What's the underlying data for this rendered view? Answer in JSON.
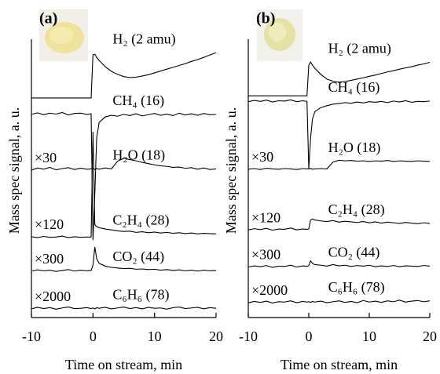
{
  "chart_data": [
    {
      "type": "line",
      "panel_label": "(a)",
      "xlabel": "Time on stream, min",
      "ylabel": "Mass spec signal, a. u.",
      "xlim": [
        -10,
        20
      ],
      "xticks": [
        -10,
        0,
        10,
        20
      ],
      "ylim": [
        0,
        100
      ],
      "line_color": "#000000",
      "x": [
        -10,
        -9,
        -8,
        -7,
        -6,
        -5,
        -4,
        -3,
        -2,
        -1,
        -0.3,
        0,
        0.3,
        0.6,
        1,
        2,
        3,
        4,
        5,
        6,
        7,
        8,
        9,
        10,
        11,
        12,
        13,
        14,
        15,
        16,
        17,
        18,
        19,
        20
      ],
      "series": [
        {
          "name": "H₂ (2 amu)",
          "values": [
            70.9,
            70.9,
            70.9,
            70.9,
            70.9,
            70.9,
            70.9,
            70.9,
            70.9,
            70.9,
            70.9,
            84.8,
            85,
            84,
            83,
            81,
            79.5,
            78.5,
            77.8,
            77.5,
            77.6,
            78,
            78.4,
            79,
            79.6,
            80.2,
            80.8,
            81.4,
            82,
            82.7,
            83.3,
            84,
            84.8,
            85.5
          ]
        },
        {
          "name": "CH₄ (16)",
          "values": [
            65.6,
            66.1,
            65.5,
            66.0,
            65.7,
            66.2,
            65.4,
            65.9,
            66.0,
            65.6,
            65.8,
            25,
            40,
            58,
            63,
            64.8,
            65.3,
            65.0,
            65.6,
            65.2,
            65.8,
            65.1,
            65.5,
            65.9,
            65.3,
            65.7,
            65.2,
            66.0,
            65.4,
            65.8,
            65.3,
            65.9,
            65.5,
            65.6
          ]
        },
        {
          "name": "H₂O (18)",
          "multiplier": "×30",
          "values": [
            47.6,
            48.3,
            47.9,
            48.5,
            47.7,
            48.1,
            48.4,
            47.8,
            48.2,
            47.9,
            48.0,
            48.2,
            47.8,
            48.1,
            47.9,
            48.3,
            48.0,
            50.5,
            51.4,
            51.0,
            50.6,
            50.1,
            49.7,
            49.3,
            49.0,
            48.8,
            48.5,
            48.6,
            48.2,
            48.4,
            47.9,
            48.3,
            47.8,
            48.0
          ]
        },
        {
          "name": "C₂H₄ (28)",
          "multiplier": "×120",
          "values": [
            26.1,
            25.8,
            26.2,
            25.9,
            26.0,
            26.3,
            25.8,
            26.1,
            25.9,
            26.0,
            26.0,
            60,
            30,
            29.4,
            29.0,
            28.6,
            28.3,
            28.0,
            27.8,
            27.9,
            27.5,
            27.7,
            27.4,
            27.6,
            27.3,
            27.5,
            27.2,
            27.4,
            27.1,
            27.3,
            27.0,
            27.2,
            27.1,
            27.0
          ]
        },
        {
          "name": "CO₂ (44)",
          "multiplier": "×300",
          "values": [
            15.0,
            15.4,
            15.1,
            15.3,
            14.9,
            15.2,
            15.5,
            15.0,
            15.3,
            15.1,
            15.2,
            17,
            22.8,
            19,
            17.5,
            16.6,
            16.2,
            16.0,
            15.8,
            15.9,
            15.6,
            15.7,
            15.5,
            15.6,
            15.3,
            15.5,
            15.2,
            15.4,
            15.1,
            15.3,
            15.0,
            15.3,
            15.1,
            15.2
          ]
        },
        {
          "name": "C₆H₆ (78)",
          "multiplier": "×2000",
          "values": [
            2.8,
            3.3,
            2.9,
            3.2,
            2.7,
            3.1,
            3.4,
            2.9,
            3.0,
            3.2,
            2.9,
            3.1,
            2.8,
            3.2,
            3.0,
            3.3,
            2.8,
            3.1,
            3.4,
            2.9,
            3.2,
            2.8,
            3.3,
            3.0,
            3.1,
            2.7,
            3.2,
            3.4,
            2.9,
            3.1,
            3.3,
            2.8,
            3.2,
            3.0
          ]
        }
      ]
    },
    {
      "type": "line",
      "panel_label": "(b)",
      "xlabel": "Time on stream, min",
      "ylabel": "Mass spec signal, a. u.",
      "xlim": [
        -10,
        20
      ],
      "xticks": [
        -10,
        0,
        10,
        20
      ],
      "ylim": [
        0,
        100
      ],
      "line_color": "#000000",
      "x": [
        -10,
        -9,
        -8,
        -7,
        -6,
        -5,
        -4,
        -3,
        -2,
        -1,
        -0.3,
        0,
        0.3,
        0.6,
        1,
        2,
        3,
        4,
        5,
        6,
        7,
        8,
        9,
        10,
        11,
        12,
        13,
        14,
        15,
        16,
        17,
        18,
        19,
        20
      ],
      "series": [
        {
          "name": "H₂ (2 amu)",
          "values": [
            71.6,
            71.6,
            71.6,
            71.6,
            71.6,
            71.6,
            71.6,
            71.6,
            71.6,
            71.6,
            71.6,
            81.5,
            82.5,
            81.5,
            80.5,
            78.5,
            77,
            76.3,
            76,
            76.2,
            76.6,
            77,
            77.4,
            77.9,
            78.3,
            78.8,
            79.3,
            79.7,
            80.2,
            80.6,
            81,
            81.5,
            81.9,
            82.4
          ]
        },
        {
          "name": "CH₄ (16)",
          "values": [
            69.7,
            70.1,
            69.8,
            70.2,
            69.6,
            70.0,
            69.9,
            70.3,
            69.7,
            70.0,
            69.8,
            48,
            58,
            64,
            66.5,
            67.8,
            68.4,
            68.9,
            69.1,
            69.4,
            69.2,
            69.6,
            69.3,
            69.7,
            69.5,
            69.8,
            69.4,
            69.9,
            69.6,
            70.0,
            69.5,
            69.8,
            69.7,
            69.9
          ]
        },
        {
          "name": "H₂O (18)",
          "multiplier": "×30",
          "values": [
            47.9,
            48.1,
            47.8,
            48.2,
            48.0,
            47.9,
            48.1,
            48.0,
            47.8,
            48.1,
            48.0,
            48.0,
            48.1,
            47.9,
            48.0,
            48.1,
            48.0,
            50.2,
            50.8,
            50.6,
            50.7,
            50.5,
            50.6,
            50.4,
            50.6,
            50.5,
            50.7,
            50.4,
            50.6,
            50.5,
            50.4,
            50.6,
            50.5,
            50.4
          ]
        },
        {
          "name": "C₂H₄ (28)",
          "multiplier": "×120",
          "values": [
            28.3,
            28.7,
            28.4,
            28.8,
            28.2,
            28.6,
            28.5,
            28.9,
            28.3,
            28.6,
            28.5,
            28.6,
            31.5,
            31.8,
            31.5,
            31.2,
            31.0,
            31.3,
            30.8,
            31.1,
            30.9,
            30.7,
            31.0,
            30.6,
            30.9,
            30.5,
            30.8,
            30.6,
            30.4,
            30.7,
            30.5,
            30.3,
            30.6,
            30.4
          ]
        },
        {
          "name": "CO₂ (44)",
          "multiplier": "×300",
          "values": [
            16.3,
            16.7,
            16.4,
            16.8,
            16.2,
            16.6,
            16.5,
            16.9,
            16.3,
            16.7,
            16.5,
            16.8,
            18.3,
            17.5,
            17.1,
            16.9,
            16.6,
            17.1,
            16.7,
            16.9,
            16.5,
            16.8,
            16.6,
            16.9,
            16.4,
            16.7,
            16.5,
            16.8,
            16.4,
            16.7,
            16.6,
            16.5,
            16.8,
            16.6
          ]
        },
        {
          "name": "C₆H₆ (78)",
          "multiplier": "×2000",
          "values": [
            4.8,
            5.2,
            4.9,
            5.3,
            4.7,
            5.1,
            5.0,
            5.4,
            4.8,
            5.2,
            5.0,
            5.1,
            4.9,
            5.2,
            5.0,
            5.3,
            4.8,
            5.1,
            5.4,
            4.9,
            5.2,
            4.8,
            5.5,
            5.0,
            5.3,
            4.9,
            5.4,
            5.1,
            5.6,
            5.0,
            5.3,
            5.5,
            5.1,
            5.4
          ]
        }
      ]
    }
  ]
}
